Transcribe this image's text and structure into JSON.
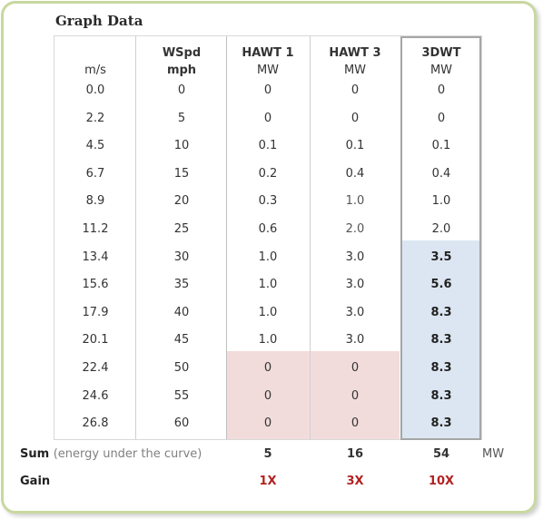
{
  "title": "Graph Data",
  "headers": {
    "ms": {
      "top": "",
      "bottom": "m/s"
    },
    "mph": {
      "top": "WSpd",
      "bottom": "mph"
    },
    "hawt1": {
      "top": "HAWT 1",
      "bottom": "MW"
    },
    "hawt3": {
      "top": "HAWT 3",
      "bottom": "MW"
    },
    "dwt3": {
      "top": "3DWT",
      "bottom": "MW"
    }
  },
  "rows": [
    {
      "ms": "0.0",
      "mph": "0",
      "hawt1": "0",
      "hawt3": "0",
      "dwt3": "0"
    },
    {
      "ms": "2.2",
      "mph": "5",
      "hawt1": "0",
      "hawt3": "0",
      "dwt3": "0"
    },
    {
      "ms": "4.5",
      "mph": "10",
      "hawt1": "0.1",
      "hawt3": "0.1",
      "dwt3": "0.1"
    },
    {
      "ms": "6.7",
      "mph": "15",
      "hawt1": "0.2",
      "hawt3": "0.4",
      "dwt3": "0.4"
    },
    {
      "ms": "8.9",
      "mph": "20",
      "hawt1": "0.3",
      "hawt3": "1.0",
      "dwt3": "1.0"
    },
    {
      "ms": "11.2",
      "mph": "25",
      "hawt1": "0.6",
      "hawt3": "2.0",
      "dwt3": "2.0"
    },
    {
      "ms": "13.4",
      "mph": "30",
      "hawt1": "1.0",
      "hawt3": "3.0",
      "dwt3": "3.5"
    },
    {
      "ms": "15.6",
      "mph": "35",
      "hawt1": "1.0",
      "hawt3": "3.0",
      "dwt3": "5.6"
    },
    {
      "ms": "17.9",
      "mph": "40",
      "hawt1": "1.0",
      "hawt3": "3.0",
      "dwt3": "8.3"
    },
    {
      "ms": "20.1",
      "mph": "45",
      "hawt1": "1.0",
      "hawt3": "3.0",
      "dwt3": "8.3"
    },
    {
      "ms": "22.4",
      "mph": "50",
      "hawt1": "0",
      "hawt3": "0",
      "dwt3": "8.3"
    },
    {
      "ms": "24.6",
      "mph": "55",
      "hawt1": "0",
      "hawt3": "0",
      "dwt3": "8.3"
    },
    {
      "ms": "26.8",
      "mph": "60",
      "hawt1": "0",
      "hawt3": "0",
      "dwt3": "8.3"
    }
  ],
  "sum": {
    "label": "Sum",
    "note": "(energy under the curve)",
    "hawt1": "5",
    "hawt3": "16",
    "dwt3": "54",
    "unit": "MW"
  },
  "gain": {
    "label": "Gain",
    "hawt1": "1X",
    "hawt3": "3X",
    "dwt3": "10X"
  },
  "colors": {
    "border_green": "#c8d8a0",
    "highlight_pink": "#f2dcdb",
    "highlight_blue": "#dce6f2",
    "gain_red": "#b22222"
  }
}
